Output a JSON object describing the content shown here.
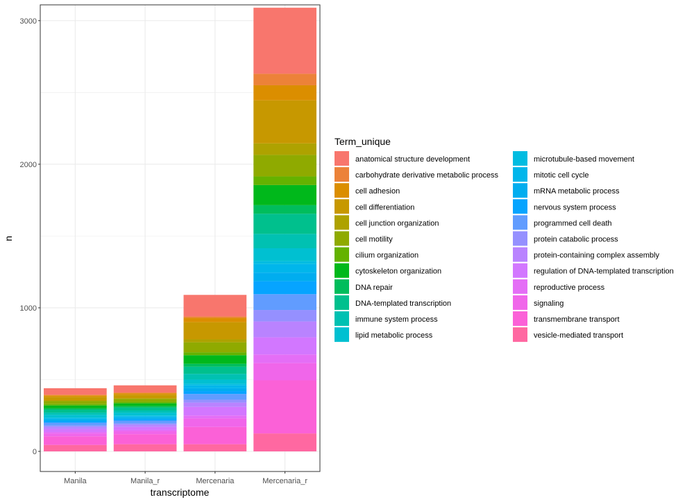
{
  "chart_data": {
    "type": "bar",
    "stacked": true,
    "xlabel": "transcriptome",
    "ylabel": "n",
    "ylim": [
      -140,
      3110
    ],
    "yticks": [
      0,
      1000,
      2000,
      3000
    ],
    "grid": true,
    "legend_title": "Term_unique",
    "legend_position": "right",
    "categories": [
      "Manila",
      "Manila_r",
      "Mercenaria",
      "Mercenaria_r"
    ],
    "series": [
      {
        "name": "anatomical structure development",
        "color": "#F8766D",
        "values": [
          45,
          50,
          150,
          460
        ]
      },
      {
        "name": "carbohydrate derivative metabolic process",
        "color": "#EC8239",
        "values": [
          5,
          5,
          10,
          80
        ]
      },
      {
        "name": "cell adhesion",
        "color": "#DB8E00",
        "values": [
          10,
          10,
          30,
          105
        ]
      },
      {
        "name": "cell differentiation",
        "color": "#C79800",
        "values": [
          25,
          25,
          120,
          300
        ]
      },
      {
        "name": "cell junction organization",
        "color": "#AEA200",
        "values": [
          5,
          5,
          20,
          80
        ]
      },
      {
        "name": "cell motility",
        "color": "#8FAA00",
        "values": [
          20,
          20,
          70,
          150
        ]
      },
      {
        "name": "cilium organization",
        "color": "#64B200",
        "values": [
          10,
          10,
          20,
          60
        ]
      },
      {
        "name": "cytoskeleton organization",
        "color": "#00B81B",
        "values": [
          20,
          20,
          60,
          140
        ]
      },
      {
        "name": "DNA repair",
        "color": "#00BD5C",
        "values": [
          10,
          10,
          20,
          60
        ]
      },
      {
        "name": "DNA-templated transcription",
        "color": "#00C08D",
        "values": [
          20,
          20,
          50,
          140
        ]
      },
      {
        "name": "immune system process",
        "color": "#00C1B2",
        "values": [
          15,
          15,
          40,
          100
        ]
      },
      {
        "name": "lipid metabolic process",
        "color": "#00C0D1",
        "values": [
          20,
          20,
          30,
          90
        ]
      },
      {
        "name": "microtubule-based movement",
        "color": "#00BCE1",
        "values": [
          5,
          5,
          10,
          20
        ]
      },
      {
        "name": "mitotic cell cycle",
        "color": "#00B6EB",
        "values": [
          10,
          10,
          20,
          60
        ]
      },
      {
        "name": "mRNA metabolic process",
        "color": "#00ADEF",
        "values": [
          10,
          10,
          20,
          60
        ]
      },
      {
        "name": "nervous system process",
        "color": "#06A4FF",
        "values": [
          10,
          10,
          20,
          90
        ]
      },
      {
        "name": "programmed cell death",
        "color": "#619CFF",
        "values": [
          20,
          20,
          40,
          110
        ]
      },
      {
        "name": "protein catabolic process",
        "color": "#9590FF",
        "values": [
          10,
          10,
          20,
          80
        ]
      },
      {
        "name": "protein-containing complex assembly",
        "color": "#B983FF",
        "values": [
          15,
          15,
          30,
          110
        ]
      },
      {
        "name": "regulation of DNA-templated transcription",
        "color": "#D277FF",
        "values": [
          20,
          20,
          60,
          120
        ]
      },
      {
        "name": "reproductive process",
        "color": "#E46EF6",
        "values": [
          10,
          10,
          20,
          60
        ]
      },
      {
        "name": "signaling",
        "color": "#F066EA",
        "values": [
          20,
          20,
          60,
          120
        ]
      },
      {
        "name": "transmembrane transport",
        "color": "#FB61D7",
        "values": [
          60,
          70,
          120,
          370
        ]
      },
      {
        "name": "vesicle-mediated transport",
        "color": "#FF68A1",
        "values": [
          45,
          50,
          50,
          125
        ]
      }
    ]
  }
}
